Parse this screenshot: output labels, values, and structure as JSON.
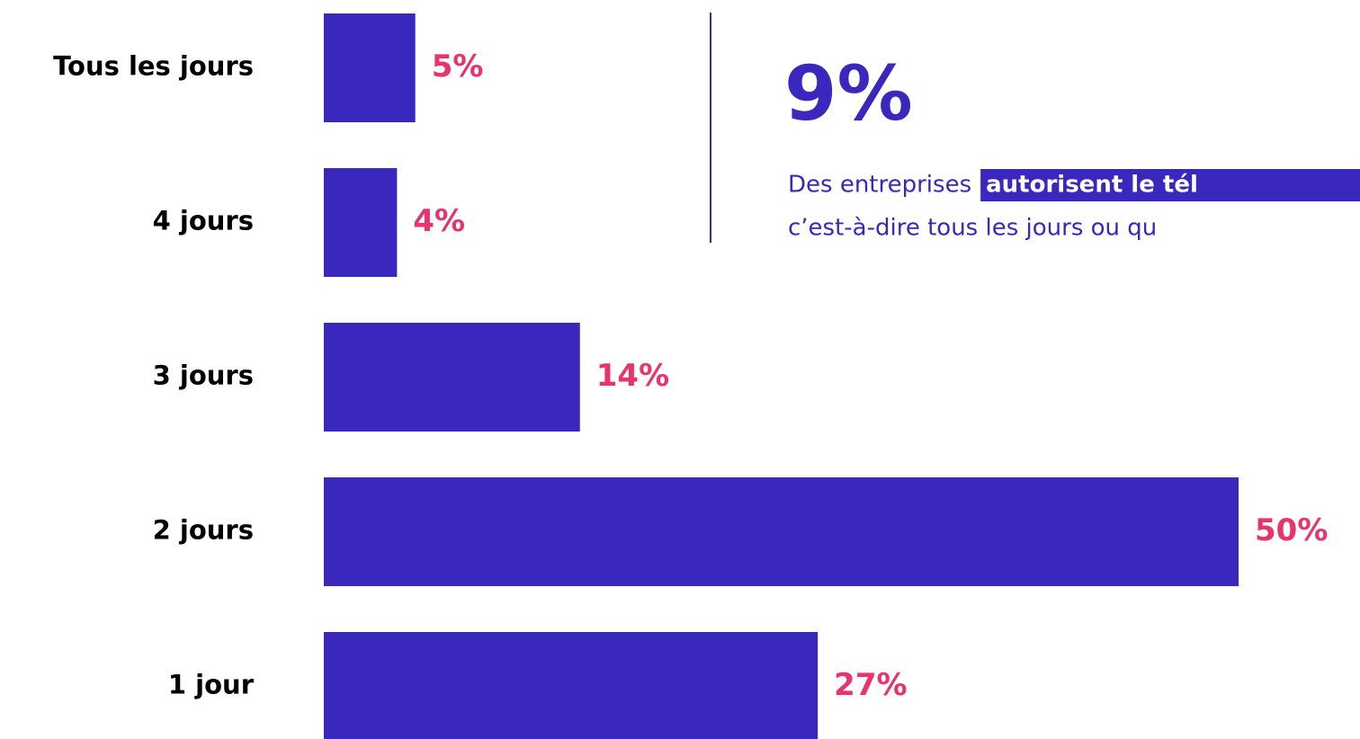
{
  "chart_data": {
    "type": "hbar",
    "categories": [
      "Tous les jours",
      "4 jours",
      "3 jours",
      "2 jours",
      "1 jour"
    ],
    "values": [
      5,
      4,
      14,
      50,
      27
    ],
    "value_labels": [
      "5%",
      "4%",
      "14%",
      "50%",
      "27%"
    ],
    "color": "#3a27bd",
    "label_color": "#e8336d",
    "xlim": [
      0,
      50
    ],
    "annotation": {
      "headline": "9%",
      "line1": "Des entreprises",
      "highlight": "autorisent le tél",
      "line2": "c’est-à-dire tous les jours ou qu"
    }
  }
}
